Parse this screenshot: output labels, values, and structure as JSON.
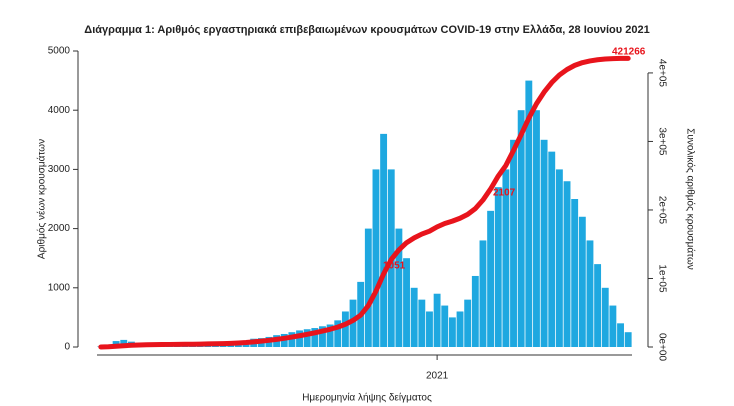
{
  "chart_data": {
    "type": "bar_line",
    "title": "Διάγραμμα 1: Αριθμός εργαστηριακά επιβεβαιωμένων κρουσμάτων COVID-19 στην Ελλάδα, 28 Ιουνίου 2021",
    "x_label": "Ημερομηνία λήψης δείγματος",
    "y_label": "Αριθμός νέων κρουσμάτων",
    "y2_label": "Συνολικός αριθμός κρουσμάτων",
    "annotations": [
      "1051",
      "2107",
      "421266"
    ],
    "categories": [
      null,
      null,
      null,
      null,
      null,
      null,
      null,
      null,
      null,
      null,
      null,
      null,
      null,
      null,
      null,
      null,
      null,
      null,
      null,
      null,
      null,
      null,
      null,
      null,
      null,
      null,
      null,
      null,
      null,
      null,
      null,
      null,
      null,
      null,
      null,
      null,
      null,
      null,
      null,
      null,
      null,
      null,
      null,
      null,
      "2021",
      null,
      null,
      null,
      null,
      null,
      null,
      null,
      null,
      null,
      null,
      null,
      null,
      null,
      null,
      null,
      null,
      null,
      null,
      null,
      null,
      null,
      null,
      null,
      null,
      null
    ],
    "series": [
      {
        "type": "bar",
        "color": "#1ea8e0",
        "values": [
          10,
          40,
          100,
          120,
          90,
          60,
          40,
          30,
          25,
          20,
          15,
          15,
          20,
          25,
          30,
          35,
          40,
          50,
          70,
          100,
          140,
          150,
          170,
          200,
          220,
          250,
          280,
          300,
          320,
          350,
          380,
          450,
          600,
          800,
          1100,
          2000,
          3000,
          3600,
          3000,
          2000,
          1500,
          1000,
          800,
          600,
          900,
          700,
          500,
          600,
          800,
          1200,
          1800,
          2300,
          2700,
          3000,
          3500,
          4000,
          4500,
          4000,
          3500,
          3300,
          3000,
          2800,
          2500,
          2200,
          1800,
          1400,
          1000,
          700,
          400,
          250
        ]
      },
      {
        "type": "line",
        "axis": "y2",
        "color": "#e8141c",
        "values": [
          70,
          350,
          1050,
          1890,
          2520,
          2940,
          3220,
          3430,
          3600,
          3740,
          3850,
          3950,
          4100,
          4270,
          4480,
          4730,
          5010,
          5360,
          5850,
          6550,
          7530,
          8580,
          9770,
          11170,
          12710,
          14460,
          16420,
          18520,
          20760,
          23210,
          25870,
          29020,
          33220,
          38820,
          46520,
          60520,
          81520,
          106720,
          127720,
          141720,
          152220,
          159220,
          164820,
          169020,
          175320,
          180220,
          183720,
          187920,
          193520,
          201920,
          214520,
          230620,
          249520,
          265000,
          287000,
          310000,
          334000,
          355000,
          372000,
          386000,
          397000,
          405000,
          411000,
          415000,
          417500,
          419200,
          420300,
          420900,
          421150,
          421266
        ]
      }
    ],
    "ylim": [
      0,
      5000
    ],
    "yticks": [
      0,
      1000,
      2000,
      3000,
      4000,
      5000
    ],
    "y2lim": [
      0,
      432000
    ],
    "y2ticks": [
      {
        "value": 0,
        "label": "0e+00"
      },
      {
        "value": 100000,
        "label": "1e+05"
      },
      {
        "value": 200000,
        "label": "2e+05"
      },
      {
        "value": 300000,
        "label": "3e+05"
      },
      {
        "value": 400000,
        "label": "4e+05"
      }
    ]
  }
}
